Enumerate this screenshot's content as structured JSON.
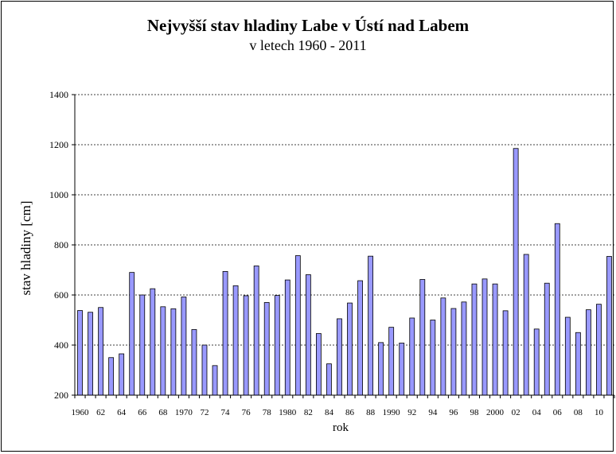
{
  "chart_data": {
    "type": "bar",
    "title": "Nejvyšší stav hladiny Labe v Ústí nad Labem",
    "subtitle": "v letech 1960 - 2011",
    "xlabel": "rok",
    "ylabel": "stav hladiny [cm]",
    "ylim": [
      200,
      1400
    ],
    "yticks": [
      200,
      400,
      600,
      800,
      1000,
      1200,
      1400
    ],
    "grid": "horizontal dashed",
    "bar_color": "#9999ff",
    "categories": [
      1960,
      1961,
      1962,
      1963,
      1964,
      1965,
      1966,
      1967,
      1968,
      1969,
      1970,
      1971,
      1972,
      1973,
      1974,
      1975,
      1976,
      1977,
      1978,
      1979,
      1980,
      1981,
      1982,
      1983,
      1984,
      1985,
      1986,
      1987,
      1988,
      1989,
      1990,
      1991,
      1992,
      1993,
      1994,
      1995,
      1996,
      1997,
      1998,
      1999,
      2000,
      2001,
      2002,
      2003,
      2004,
      2005,
      2006,
      2007,
      2008,
      2009,
      2010,
      2011
    ],
    "tick_labels": [
      "1960",
      "",
      "62",
      "",
      "64",
      "",
      "66",
      "",
      "68",
      "",
      "1970",
      "",
      "72",
      "",
      "74",
      "",
      "76",
      "",
      "78",
      "",
      "1980",
      "",
      "82",
      "",
      "84",
      "",
      "86",
      "",
      "88",
      "",
      "1990",
      "",
      "92",
      "",
      "94",
      "",
      "96",
      "",
      "98",
      "",
      "2000",
      "",
      "02",
      "",
      "04",
      "",
      "06",
      "",
      "08",
      "",
      "10",
      ""
    ],
    "values": [
      538,
      531,
      550,
      350,
      365,
      690,
      600,
      625,
      553,
      545,
      592,
      462,
      400,
      318,
      694,
      637,
      597,
      716,
      570,
      598,
      660,
      757,
      681,
      446,
      325,
      505,
      568,
      657,
      755,
      410,
      471,
      408,
      508,
      662,
      500,
      588,
      546,
      572,
      644,
      664,
      644,
      537,
      1185,
      762,
      464,
      647,
      885,
      511,
      450,
      541,
      563,
      754
    ]
  }
}
